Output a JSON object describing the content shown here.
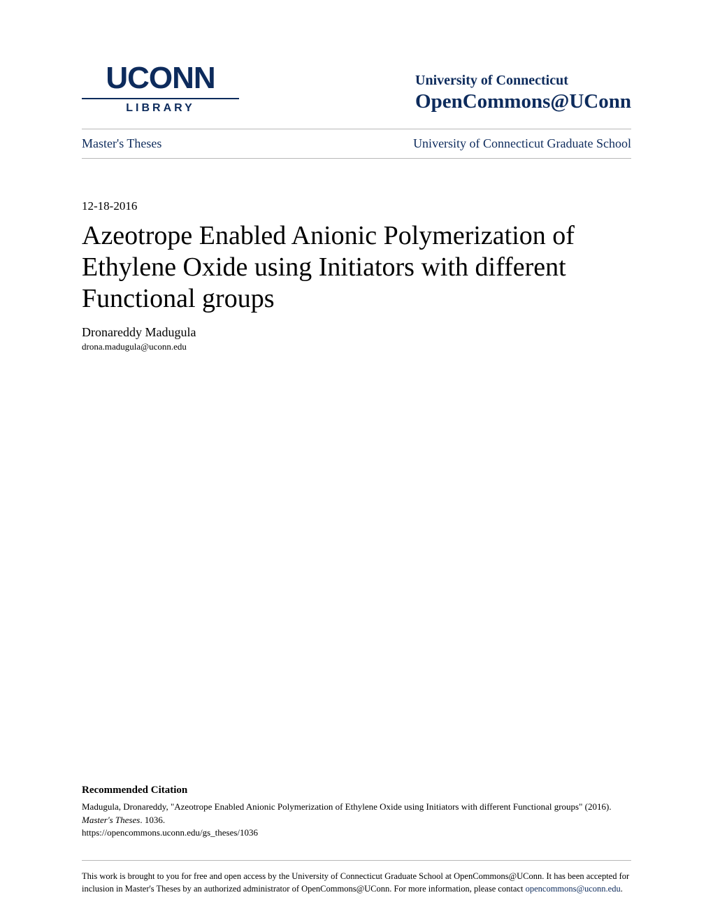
{
  "header": {
    "logo": {
      "main": "UCONN",
      "sub": "LIBRARY"
    },
    "university": "University of Connecticut",
    "repository": "OpenCommons@UConn"
  },
  "nav": {
    "left": "Master's Theses",
    "right": "University of Connecticut Graduate School"
  },
  "document": {
    "date": "12-18-2016",
    "title": "Azeotrope Enabled Anionic Polymerization of Ethylene Oxide using Initiators with different Functional groups",
    "author": "Dronareddy Madugula",
    "email": "drona.madugula@uconn.edu"
  },
  "citation": {
    "heading": "Recommended Citation",
    "text_part1": "Madugula, Dronareddy, \"Azeotrope Enabled Anionic Polymerization of Ethylene Oxide using Initiators with different Functional groups\" (2016). ",
    "text_italic": "Master's Theses",
    "text_part2": ". 1036.",
    "url": "https://opencommons.uconn.edu/gs_theses/1036"
  },
  "footer": {
    "text": "This work is brought to you for free and open access by the University of Connecticut Graduate School at OpenCommons@UConn. It has been accepted for inclusion in Master's Theses by an authorized administrator of OpenCommons@UConn. For more information, please contact ",
    "link": "opencommons@uconn.edu",
    "suffix": "."
  },
  "colors": {
    "brand": "#0d2b5c",
    "text": "#000000",
    "divider": "#b8b8b8",
    "background": "#ffffff"
  }
}
